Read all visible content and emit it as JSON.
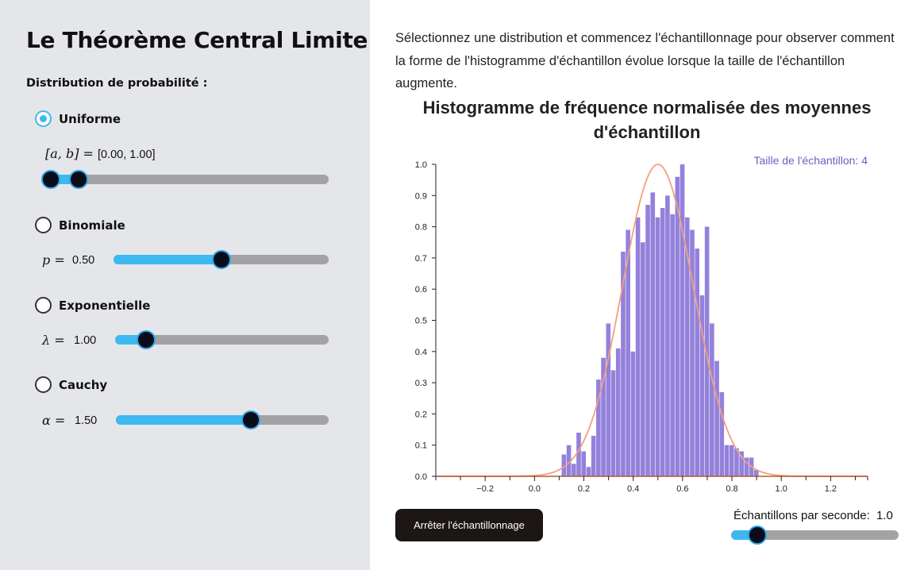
{
  "sidebar": {
    "title": "Le Théorème Central Limite",
    "section_label": "Distribution de probabilité :",
    "distributions": [
      {
        "label": "Uniforme",
        "selected": true,
        "param_label": "[a, b] =",
        "param_value": "[0.00, 1.00]",
        "range": [
          0.0,
          1.0
        ]
      },
      {
        "label": "Binomiale",
        "selected": false,
        "param_label": "p =",
        "param_value": "0.50",
        "level": 0.5
      },
      {
        "label": "Exponentielle",
        "selected": false,
        "param_label": "λ =",
        "param_value": "1.00",
        "level": 0.14
      },
      {
        "label": "Cauchy",
        "selected": false,
        "param_label": "α =",
        "param_value": "1.50",
        "level": 0.63
      }
    ]
  },
  "main": {
    "intro": "Sélectionnez une distribution et commencez l'échantillonnage pour observer comment la forme de l'histogramme d'échantillon évolue lorsque la taille de l'échantillon augmente.",
    "stop_button": "Arrêter l'échantillonnage",
    "rate_label": "Échantillons par seconde:",
    "rate_value": "1.0",
    "rate_level": 0.16
  },
  "colors": {
    "accent": "#3db9f0",
    "bars": "#9381db",
    "curve": "#f4a07f",
    "axis": "#b05c2c",
    "annotation": "#6a5fc2"
  },
  "chart_data": {
    "type": "bar",
    "title_lines": [
      "Histogramme de fréquence normalisée des moyennes",
      "d'échantillon"
    ],
    "annotation": "Taille de l'échantillon: 4",
    "xlim": [
      -0.4,
      1.35
    ],
    "ylim": [
      0,
      1.0
    ],
    "x_ticks": [
      -0.2,
      0.0,
      0.2,
      0.4,
      0.6,
      0.8,
      1.0,
      1.2
    ],
    "x_tick_labels": [
      "−0.2",
      "0.0",
      "0.2",
      "0.4",
      "0.6",
      "0.8",
      "1.0",
      "1.2"
    ],
    "y_ticks": [
      0.0,
      0.1,
      0.2,
      0.3,
      0.4,
      0.5,
      0.6,
      0.7,
      0.8,
      0.9,
      1.0
    ],
    "y_tick_labels": [
      "0.0",
      "0.1",
      "0.2",
      "0.3",
      "0.4",
      "0.5",
      "0.6",
      "0.7",
      "0.8",
      "0.9",
      "1.0"
    ],
    "bin_width": 0.02,
    "bin_starts": [
      0.11,
      0.13,
      0.15,
      0.17,
      0.19,
      0.21,
      0.23,
      0.25,
      0.27,
      0.29,
      0.31,
      0.33,
      0.35,
      0.37,
      0.39,
      0.41,
      0.43,
      0.45,
      0.47,
      0.49,
      0.51,
      0.53,
      0.55,
      0.57,
      0.59,
      0.61,
      0.63,
      0.65,
      0.67,
      0.69,
      0.71,
      0.73,
      0.75,
      0.77,
      0.79,
      0.81,
      0.83,
      0.85,
      0.87,
      0.89
    ],
    "values": [
      0.07,
      0.1,
      0.04,
      0.14,
      0.08,
      0.03,
      0.13,
      0.31,
      0.38,
      0.49,
      0.34,
      0.41,
      0.72,
      0.79,
      0.4,
      0.83,
      0.75,
      0.87,
      0.91,
      0.83,
      0.86,
      0.9,
      0.84,
      0.96,
      1.0,
      0.83,
      0.79,
      0.73,
      0.58,
      0.8,
      0.49,
      0.37,
      0.27,
      0.1,
      0.1,
      0.09,
      0.08,
      0.06,
      0.06,
      0.02
    ],
    "curve": {
      "type": "normal",
      "mean": 0.5,
      "peak": 1.0,
      "sd": 0.144
    }
  }
}
